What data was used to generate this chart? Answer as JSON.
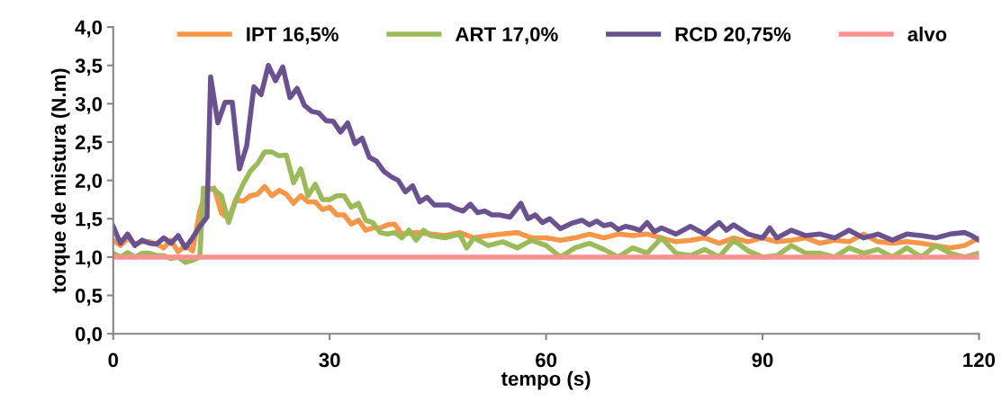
{
  "chart_data": {
    "type": "line",
    "xlabel": "tempo (s)",
    "ylabel": "torque de mistura (N.m)",
    "xlim": [
      0,
      120
    ],
    "xticks": [
      0,
      30,
      60,
      90,
      120
    ],
    "ylim": [
      0,
      4
    ],
    "yticks": [
      {
        "value": 0,
        "label": "0,0"
      },
      {
        "value": 0.5,
        "label": "0,5"
      },
      {
        "value": 1,
        "label": "1,0"
      },
      {
        "value": 1.5,
        "label": "1,5"
      },
      {
        "value": 2,
        "label": "2,0"
      },
      {
        "value": 2.5,
        "label": "2,5"
      },
      {
        "value": 3,
        "label": "3,0"
      },
      {
        "value": 3.5,
        "label": "3,5"
      },
      {
        "value": 4,
        "label": "4,0"
      }
    ],
    "grid": false,
    "legend": "top",
    "marker": "none",
    "line_style": "solid",
    "series": [
      {
        "name": "IPT 16,5%",
        "color": "#f79646",
        "x": [
          0,
          1,
          2,
          3,
          4,
          5,
          6,
          7,
          8,
          9,
          10,
          11,
          12,
          13,
          14,
          15,
          16,
          17,
          18,
          19,
          20,
          21,
          22,
          23,
          24,
          25,
          26,
          27,
          28,
          29,
          30,
          31,
          32,
          33,
          34,
          35,
          36,
          37,
          38,
          39,
          40,
          42,
          44,
          46,
          48,
          50,
          52,
          54,
          56,
          58,
          60,
          62,
          64,
          66,
          68,
          70,
          72,
          74,
          76,
          78,
          80,
          82,
          84,
          86,
          88,
          90,
          92,
          94,
          96,
          98,
          100,
          102,
          104,
          106,
          108,
          110,
          112,
          114,
          116,
          118,
          120
        ],
        "values": [
          1.22,
          1.15,
          1.25,
          1.17,
          1.2,
          1.2,
          1.17,
          1.12,
          1.22,
          1.07,
          1.15,
          1.08,
          1.6,
          1.88,
          1.9,
          1.57,
          1.5,
          1.75,
          1.73,
          1.8,
          1.82,
          1.92,
          1.8,
          1.87,
          1.82,
          1.7,
          1.8,
          1.72,
          1.72,
          1.62,
          1.65,
          1.55,
          1.55,
          1.43,
          1.48,
          1.35,
          1.38,
          1.38,
          1.42,
          1.43,
          1.3,
          1.32,
          1.3,
          1.28,
          1.32,
          1.25,
          1.28,
          1.3,
          1.32,
          1.25,
          1.25,
          1.22,
          1.25,
          1.3,
          1.25,
          1.3,
          1.28,
          1.3,
          1.25,
          1.2,
          1.22,
          1.25,
          1.18,
          1.25,
          1.2,
          1.25,
          1.2,
          1.22,
          1.25,
          1.18,
          1.22,
          1.2,
          1.3,
          1.2,
          1.18,
          1.2,
          1.18,
          1.15,
          1.12,
          1.15,
          1.25
        ]
      },
      {
        "name": "ART 17,0%",
        "color": "#9bbb59",
        "x": [
          0,
          1,
          2,
          3,
          4,
          5,
          6,
          7,
          8,
          9,
          10,
          11,
          12,
          12.5,
          14,
          15,
          16,
          17,
          18,
          19,
          20,
          21,
          22,
          23,
          24,
          25,
          26,
          27,
          28,
          29,
          30,
          31,
          32,
          33,
          34,
          35,
          36,
          37,
          38,
          39,
          40,
          41,
          42,
          43,
          44,
          46,
          48,
          49,
          50,
          52,
          54,
          56,
          58,
          60,
          62,
          64,
          66,
          68,
          70,
          72,
          74,
          76,
          78,
          80,
          82,
          84,
          86,
          88,
          90,
          92,
          94,
          96,
          98,
          100,
          102,
          104,
          106,
          108,
          110,
          112,
          114,
          116,
          118,
          120
        ],
        "values": [
          1.05,
          1.0,
          1.06,
          1.0,
          1.05,
          1.05,
          1.02,
          1.02,
          0.98,
          1.0,
          0.93,
          0.96,
          1.0,
          1.9,
          1.88,
          1.8,
          1.45,
          1.75,
          1.95,
          2.12,
          2.22,
          2.37,
          2.37,
          2.32,
          2.33,
          1.97,
          2.15,
          1.8,
          1.95,
          1.75,
          1.75,
          1.8,
          1.8,
          1.65,
          1.7,
          1.48,
          1.45,
          1.32,
          1.3,
          1.32,
          1.25,
          1.35,
          1.22,
          1.35,
          1.28,
          1.25,
          1.3,
          1.12,
          1.25,
          1.15,
          1.2,
          1.12,
          1.22,
          1.15,
          1.0,
          1.12,
          1.18,
          1.1,
          1.0,
          1.12,
          1.05,
          1.25,
          1.05,
          1.02,
          1.1,
          1.0,
          1.22,
          1.08,
          1.0,
          1.02,
          1.15,
          1.05,
          1.05,
          1.0,
          1.12,
          1.05,
          1.1,
          1.0,
          1.12,
          1.0,
          1.15,
          1.05,
          1.0,
          1.05
        ]
      },
      {
        "name": "RCD 20,75%",
        "color": "#6a5290",
        "x": [
          0,
          1,
          2,
          3,
          4,
          5,
          6,
          7,
          8,
          9,
          10,
          11,
          12,
          13,
          13.5,
          14.5,
          15.5,
          16.5,
          17.5,
          18.5,
          19.5,
          20.5,
          21.5,
          22.5,
          23.5,
          24.5,
          25.5,
          26.5,
          27.5,
          28.5,
          29.5,
          30.5,
          31.5,
          32.5,
          33.5,
          34.5,
          35.5,
          36.5,
          37.5,
          38.5,
          39.5,
          40.5,
          41.5,
          42.5,
          43.5,
          44.5,
          45.5,
          46.5,
          47.5,
          48.5,
          49.5,
          50.5,
          51.5,
          52.5,
          53.5,
          55,
          56.5,
          57.5,
          58.5,
          59.5,
          60.5,
          62,
          63.5,
          65,
          66,
          67,
          68,
          69,
          70,
          71,
          72,
          73,
          74,
          75,
          76,
          78,
          80,
          82,
          84,
          85,
          86,
          88,
          90,
          91,
          92,
          94,
          96,
          98,
          100,
          102,
          104,
          106,
          108,
          110,
          112,
          114,
          116,
          118,
          119,
          120
        ],
        "values": [
          1.4,
          1.18,
          1.3,
          1.15,
          1.22,
          1.18,
          1.17,
          1.25,
          1.18,
          1.28,
          1.12,
          1.25,
          1.4,
          1.52,
          3.35,
          2.75,
          3.02,
          3.02,
          2.15,
          2.45,
          3.22,
          3.12,
          3.5,
          3.3,
          3.48,
          3.08,
          3.2,
          2.98,
          2.9,
          2.88,
          2.78,
          2.77,
          2.63,
          2.75,
          2.48,
          2.55,
          2.3,
          2.25,
          2.12,
          2.05,
          2.0,
          1.85,
          1.93,
          1.72,
          1.78,
          1.68,
          1.68,
          1.68,
          1.63,
          1.6,
          1.69,
          1.58,
          1.6,
          1.55,
          1.55,
          1.52,
          1.7,
          1.5,
          1.55,
          1.45,
          1.5,
          1.37,
          1.44,
          1.48,
          1.42,
          1.47,
          1.41,
          1.43,
          1.36,
          1.4,
          1.38,
          1.35,
          1.45,
          1.33,
          1.38,
          1.3,
          1.4,
          1.3,
          1.45,
          1.35,
          1.42,
          1.3,
          1.25,
          1.38,
          1.25,
          1.35,
          1.28,
          1.3,
          1.25,
          1.35,
          1.25,
          1.3,
          1.22,
          1.3,
          1.28,
          1.25,
          1.3,
          1.32,
          1.28,
          1.22
        ]
      },
      {
        "name": "alvo",
        "color": "#ff9191",
        "x": [
          0,
          120
        ],
        "values": [
          1.0,
          1.0
        ]
      }
    ]
  }
}
